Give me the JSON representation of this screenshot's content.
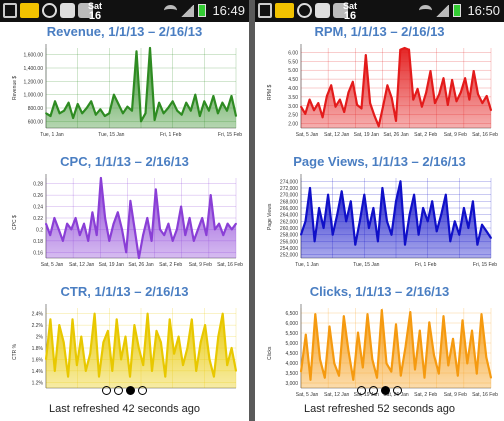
{
  "screens": [
    {
      "status": {
        "cal_dow": "Sat",
        "cal_day": "16",
        "time": "16:49"
      },
      "pager": {
        "count": 4,
        "active": 2
      },
      "refreshed": "Last refreshed 42 seconds ago",
      "charts": [
        {
          "key": "revenue",
          "title": "Revenue, 1/1/13 – 2/16/13",
          "color": "#2e8b22",
          "ylabel": "Revenue $",
          "ytick_labels": [
            "1,600.00",
            "1,400.00",
            "1,200.00",
            "1,000.00",
            "800.00",
            "600.00"
          ],
          "ylim": [
            500,
            1700
          ],
          "xtick_labels": [
            "Tue, 1 Jan",
            "Tue, 15 Jan",
            "Fri, 1 Feb",
            "Fri, 15 Feb"
          ],
          "values": [
            720,
            680,
            900,
            720,
            760,
            880,
            650,
            860,
            720,
            800,
            900,
            700,
            780,
            680,
            720,
            1000,
            860,
            720,
            820,
            760,
            1650,
            600,
            720,
            1700,
            620,
            880,
            720,
            800,
            900,
            760,
            700,
            880,
            760,
            1000,
            680,
            900,
            760,
            980,
            720,
            880,
            760,
            980,
            680
          ]
        },
        {
          "key": "cpc",
          "title": "CPC, 1/1/13 – 2/16/13",
          "color": "#8a3fd6",
          "ylabel": "CPC $",
          "ytick_labels": [
            "0.28",
            "0.26",
            "0.24",
            "0.22",
            "0.2",
            "0.18",
            "0.16"
          ],
          "ylim": [
            0.15,
            0.29
          ],
          "xtick_labels": [
            "Sat, 5 Jan",
            "Sat, 12 Jan",
            "Sat, 19 Jan",
            "Sat, 26 Jan",
            "Sat, 2 Feb",
            "Sat, 9 Feb",
            "Sat, 16 Feb"
          ],
          "values": [
            0.21,
            0.19,
            0.22,
            0.2,
            0.18,
            0.21,
            0.2,
            0.22,
            0.19,
            0.21,
            0.18,
            0.23,
            0.19,
            0.29,
            0.22,
            0.18,
            0.21,
            0.23,
            0.2,
            0.16,
            0.25,
            0.2,
            0.15,
            0.19,
            0.22,
            0.18,
            0.27,
            0.2,
            0.19,
            0.21,
            0.18,
            0.2,
            0.24,
            0.19,
            0.22,
            0.18,
            0.2,
            0.22,
            0.19,
            0.26,
            0.2,
            0.21,
            0.19,
            0.21,
            0.2,
            0.21
          ]
        },
        {
          "key": "ctr",
          "title": "CTR, 1/1/13 – 2/16/13",
          "color": "#e8c800",
          "ylabel": "CTR %",
          "ytick_labels": [
            "2.4%",
            "2.2%",
            "2%",
            "1.8%",
            "1.6%",
            "1.4%",
            "1.2%"
          ],
          "ylim": [
            1.1,
            2.5
          ],
          "xtick_labels": [],
          "values": [
            1.6,
            2.3,
            1.4,
            2.2,
            1.9,
            1.3,
            2.3,
            1.5,
            2.0,
            1.4,
            1.7,
            2.4,
            1.3,
            1.9,
            2.1,
            1.4,
            2.3,
            1.6,
            2.0,
            1.3,
            2.2,
            1.8,
            1.5,
            2.4,
            1.4,
            2.1,
            1.9,
            1.3,
            2.3,
            1.7,
            2.0,
            1.5,
            1.8,
            2.3,
            1.4,
            1.9,
            2.2,
            1.6,
            1.3,
            2.0,
            2.4,
            1.5,
            1.8,
            1.4
          ]
        }
      ]
    },
    {
      "status": {
        "cal_dow": "Sat",
        "cal_day": "16",
        "time": "16:50"
      },
      "pager": {
        "count": 4,
        "active": 2
      },
      "refreshed": "Last refreshed 52 seconds ago",
      "charts": [
        {
          "key": "rpm",
          "title": "RPM, 1/1/13 – 2/16/13",
          "color": "#e31b1b",
          "ylabel": "RPM $",
          "ytick_labels": [
            "6.00",
            "5.50",
            "5.00",
            "4.50",
            "4.00",
            "3.50",
            "3.00",
            "2.50",
            "2.00"
          ],
          "ylim": [
            1.8,
            6.3
          ],
          "xtick_labels": [
            "Sat, 5 Jan",
            "Sat, 12 Jan",
            "Sat, 19 Jan",
            "Sat, 26 Jan",
            "Sat, 2 Feb",
            "Sat, 9 Feb",
            "Sat, 16 Feb"
          ],
          "values": [
            3.0,
            2.6,
            3.4,
            2.8,
            3.2,
            2.4,
            3.6,
            4.2,
            3.0,
            3.4,
            2.7,
            3.8,
            4.4,
            3.1,
            2.9,
            5.9,
            3.2,
            2.5,
            1.9,
            3.0,
            4.2,
            3.5,
            2.2,
            6.2,
            6.3,
            6.2,
            3.4,
            4.0,
            3.0,
            3.8,
            5.0,
            3.2,
            3.7,
            4.6,
            3.1,
            4.5,
            3.3,
            3.8,
            4.6,
            3.4,
            5.0,
            3.7,
            3.2,
            3.6,
            2.8
          ]
        },
        {
          "key": "pageviews",
          "title": "Page Views, 1/1/13 – 2/16/13",
          "color": "#1010c8",
          "ylabel": "Page Views",
          "ytick_labels": [
            "274,000",
            "272,000",
            "270,000",
            "268,000",
            "266,000",
            "264,000",
            "262,000",
            "260,000",
            "258,000",
            "256,000",
            "254,000",
            "252,000"
          ],
          "ylim": [
            251000,
            275000
          ],
          "xtick_labels": [
            "Tue, 1 Jan",
            "Tue, 15 Jan",
            "Fri, 1 Feb",
            "Fri, 15 Feb"
          ],
          "values": [
            258000,
            262000,
            272000,
            256000,
            266000,
            260000,
            270000,
            258000,
            264000,
            271000,
            262000,
            268000,
            255000,
            262000,
            270000,
            260000,
            266000,
            256000,
            272000,
            262000,
            258000,
            268000,
            274000,
            255000,
            264000,
            270000,
            258000,
            266000,
            262000,
            268000,
            259000,
            264000,
            270000,
            256000,
            262000,
            258000,
            266000,
            260000,
            268000,
            255000,
            261000,
            259000,
            257000
          ]
        },
        {
          "key": "clicks",
          "title": "Clicks, 1/1/13 – 2/16/13",
          "color": "#f59a10",
          "ylabel": "Clicks",
          "ytick_labels": [
            "6,500",
            "6,000",
            "5,500",
            "5,000",
            "4,500",
            "4,000",
            "3,500",
            "3,000"
          ],
          "ylim": [
            2800,
            6700
          ],
          "xtick_labels": [
            "Sat, 5 Jan",
            "Sat, 12 Jan",
            "Sat, 19 Jan",
            "Sat, 26 Jan",
            "Sat, 2 Feb",
            "Sat, 9 Feb",
            "Sat, 16 Feb"
          ],
          "values": [
            3600,
            5400,
            3200,
            6400,
            4200,
            3300,
            5800,
            4000,
            3400,
            6300,
            4600,
            3200,
            5500,
            3800,
            6400,
            4200,
            3300,
            6600,
            4000,
            3600,
            5900,
            3400,
            4800,
            6500,
            3700,
            5600,
            3300,
            6000,
            4400,
            3500,
            6300,
            3900,
            5200,
            3400,
            6100,
            4000,
            5600,
            3500,
            6400,
            4300,
            3300
          ]
        }
      ]
    }
  ]
}
